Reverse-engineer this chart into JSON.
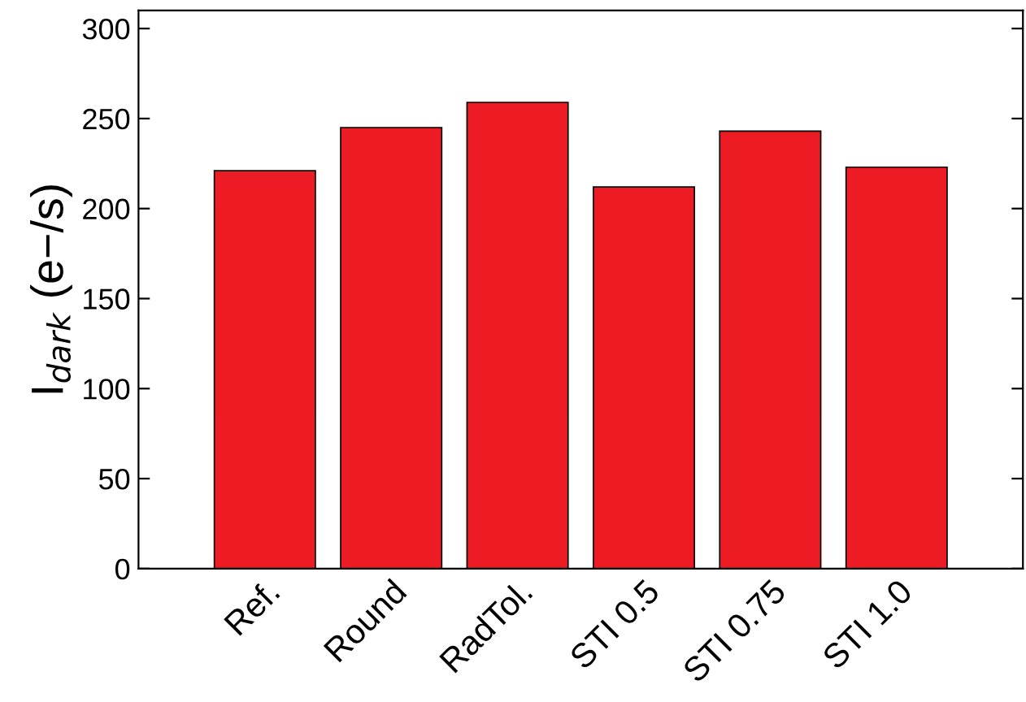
{
  "chart_data": {
    "type": "bar",
    "ylabel": "I$_{dark}$ (e−/s)",
    "categories": [
      "Ref.",
      "Round",
      "RadTol.",
      "STI 0.5",
      "STI 0.75",
      "STI 1.0"
    ],
    "values": [
      221,
      245,
      259,
      212,
      243,
      223
    ],
    "color": "#ed1c24",
    "ylim": [
      0,
      310
    ],
    "yticks": [
      0,
      50,
      100,
      150,
      200,
      250,
      300
    ],
    "grid": false,
    "legend": false
  }
}
